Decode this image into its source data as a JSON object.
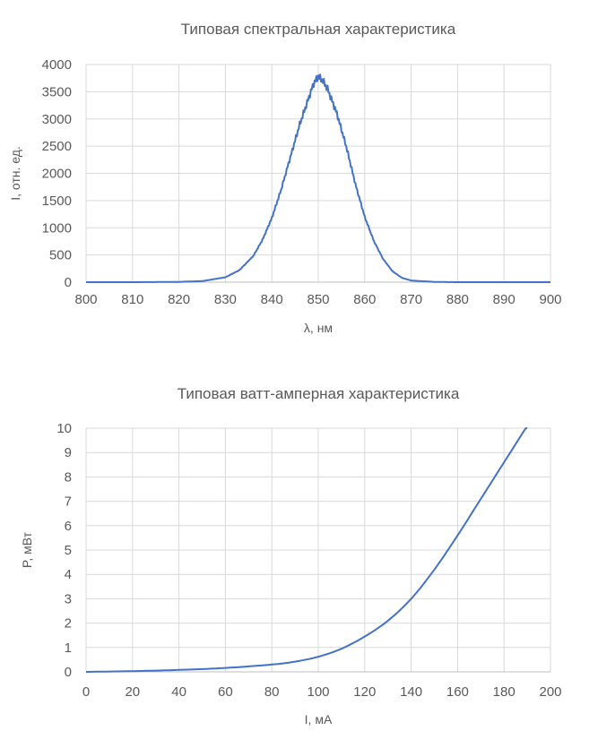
{
  "chart_data": [
    {
      "type": "line",
      "title": "Типовая спектральная характеристика",
      "xlabel": "λ, нм",
      "ylabel": "I, отн. ед.",
      "xlim": [
        800,
        900
      ],
      "ylim": [
        0,
        4000
      ],
      "xticks": [
        800,
        810,
        820,
        830,
        840,
        850,
        860,
        870,
        880,
        890,
        900
      ],
      "yticks": [
        0,
        500,
        1000,
        1500,
        2000,
        2500,
        3000,
        3500,
        4000
      ],
      "grid": true,
      "legend": "none",
      "color": "#4472c4",
      "series": [
        {
          "x": [
            800,
            810,
            820,
            825,
            830,
            833,
            836,
            838,
            840,
            842,
            844,
            846,
            848,
            849,
            850,
            851,
            852,
            854,
            856,
            858,
            860,
            862,
            864,
            866,
            868,
            870,
            875,
            880,
            890,
            900
          ],
          "y": [
            0,
            0,
            5,
            20,
            90,
            220,
            480,
            780,
            1180,
            1700,
            2300,
            2900,
            3400,
            3650,
            3780,
            3700,
            3550,
            3100,
            2500,
            1800,
            1200,
            750,
            420,
            200,
            80,
            30,
            5,
            0,
            0,
            0
          ],
          "noise": 70
        }
      ]
    },
    {
      "type": "line",
      "title": "Типовая ватт-амперная характеристика",
      "xlabel": "I, мА",
      "ylabel": "P, мВт",
      "xlim": [
        0,
        200
      ],
      "ylim": [
        0,
        10
      ],
      "xticks": [
        0,
        20,
        40,
        60,
        80,
        100,
        120,
        140,
        160,
        180,
        200
      ],
      "yticks": [
        0,
        1,
        2,
        3,
        4,
        5,
        6,
        7,
        8,
        9,
        10
      ],
      "grid": true,
      "legend": "none",
      "color": "#4472c4",
      "series": [
        {
          "x": [
            0,
            20,
            40,
            60,
            80,
            90,
            100,
            110,
            120,
            130,
            140,
            150,
            160,
            170,
            180,
            190
          ],
          "y": [
            0,
            0.03,
            0.08,
            0.16,
            0.3,
            0.42,
            0.62,
            0.95,
            1.45,
            2.1,
            3.0,
            4.2,
            5.6,
            7.1,
            8.6,
            10.1
          ]
        }
      ]
    }
  ]
}
